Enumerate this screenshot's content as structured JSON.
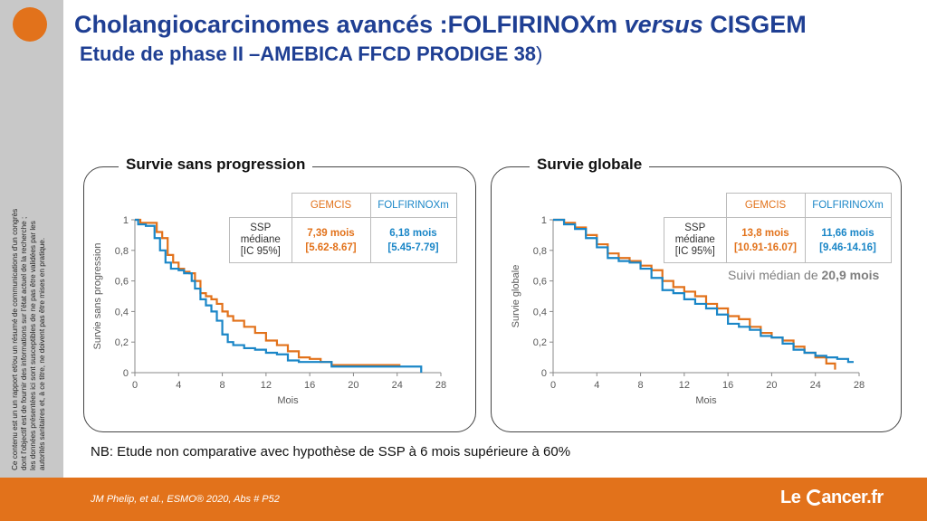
{
  "title_line1_a": "Cholangiocarcinomes avancés :FOLFIRINOXm ",
  "title_line1_b": "versus",
  "title_line1_c": " CISGEM",
  "title_line2": "Etude de phase II –AMEBICA  FFCD PRODIGE 38",
  "title_line2_paren": ")",
  "disclaimer": [
    "Ce contenu est un un rapport et/ou un résumé de communications d'un congrès",
    "dont l'objectif est de fournir des informations sur l'état actuel de la recherche ;",
    "les données présentées ici sont susceptibles de ne pas être validées par les",
    "autorités sanitaires et, à ce titre, ne doivent pas être mises en pratique."
  ],
  "colors": {
    "gemcis": "#e2721b",
    "folfirinox": "#1a86c7",
    "title": "#1f3f93",
    "footer": "#e2721b"
  },
  "table_headers": {
    "gemcis": "GEMCIS",
    "folfirinox": "FOLFIRINOXm"
  },
  "table_row_label": [
    "SSP",
    "médiane",
    "[IC 95%]"
  ],
  "pfs": {
    "panel_title": "Survie sans progression",
    "gemcis_value": [
      "7,39 mois",
      "[5.62-8.67]"
    ],
    "folfirinox_value": [
      "6,18 mois",
      "[5.45-7.79]"
    ]
  },
  "os": {
    "panel_title": "Survie globale",
    "gemcis_value": [
      "13,8 mois",
      "[10.91-16.07]"
    ],
    "folfirinox_value": [
      "11,66 mois",
      "[9.46-14.16]"
    ],
    "followup_text": "Suivi médian de ",
    "followup_bold": "20,9 mois"
  },
  "chart_data": [
    {
      "type": "line",
      "title": "Survie sans progression",
      "xlabel": "Mois",
      "ylabel": "Survie sans progression",
      "xlim": [
        0,
        28
      ],
      "ylim": [
        0,
        1
      ],
      "xticks": [
        "0",
        "4",
        "8",
        "12",
        "16",
        "20",
        "24",
        "28"
      ],
      "yticks": [
        "0",
        "0,2",
        "0,4",
        "0,6",
        "0,8",
        "1"
      ],
      "grid": false,
      "series": [
        {
          "name": "GEMCIS",
          "color": "#e2721b",
          "x": [
            0,
            0.5,
            1.2,
            2,
            2.5,
            3,
            3.5,
            4,
            4.5,
            5,
            5.5,
            6,
            6.5,
            7,
            7.5,
            8,
            8.5,
            9,
            10,
            11,
            12,
            13,
            14,
            15,
            16,
            17,
            18,
            20,
            22,
            24,
            24.3
          ],
          "y": [
            1,
            0.98,
            0.98,
            0.92,
            0.88,
            0.77,
            0.72,
            0.68,
            0.66,
            0.65,
            0.6,
            0.52,
            0.5,
            0.48,
            0.45,
            0.4,
            0.37,
            0.34,
            0.3,
            0.26,
            0.21,
            0.18,
            0.14,
            0.1,
            0.09,
            0.07,
            0.05,
            0.05,
            0.05,
            0.05,
            0.05
          ]
        },
        {
          "name": "FOLFIRINOXm",
          "color": "#1a86c7",
          "x": [
            0,
            0.3,
            1,
            1.8,
            2.3,
            2.8,
            3.3,
            4,
            4.5,
            5.2,
            5.5,
            6,
            6.5,
            7,
            7.5,
            8,
            8.5,
            9,
            10,
            11,
            12,
            13,
            14,
            15,
            16,
            18,
            20,
            24,
            26,
            26.2
          ],
          "y": [
            1,
            0.97,
            0.96,
            0.88,
            0.8,
            0.72,
            0.68,
            0.67,
            0.65,
            0.6,
            0.55,
            0.48,
            0.44,
            0.4,
            0.34,
            0.25,
            0.2,
            0.18,
            0.16,
            0.15,
            0.13,
            0.12,
            0.08,
            0.07,
            0.07,
            0.04,
            0.04,
            0.04,
            0.04,
            0
          ]
        }
      ]
    },
    {
      "type": "line",
      "title": "Survie globale",
      "xlabel": "Mois",
      "ylabel": "Survie globale",
      "xlim": [
        0,
        28
      ],
      "ylim": [
        0,
        1
      ],
      "xticks": [
        "0",
        "4",
        "8",
        "12",
        "16",
        "20",
        "24",
        "28"
      ],
      "yticks": [
        "0",
        "0,2",
        "0,4",
        "0,6",
        "0,8",
        "1"
      ],
      "grid": false,
      "series": [
        {
          "name": "GEMCIS",
          "color": "#e2721b",
          "x": [
            0,
            1,
            2,
            3,
            4,
            5,
            6,
            7,
            8,
            9,
            10,
            11,
            12,
            13,
            14,
            15,
            16,
            17,
            18,
            19,
            20,
            21,
            22,
            23,
            24,
            25,
            25.8
          ],
          "y": [
            1,
            0.98,
            0.95,
            0.9,
            0.84,
            0.78,
            0.75,
            0.73,
            0.7,
            0.67,
            0.6,
            0.56,
            0.53,
            0.5,
            0.45,
            0.42,
            0.37,
            0.35,
            0.3,
            0.26,
            0.23,
            0.21,
            0.17,
            0.13,
            0.1,
            0.06,
            0.02
          ]
        },
        {
          "name": "FOLFIRINOXm",
          "color": "#1a86c7",
          "x": [
            0,
            1,
            2,
            3,
            4,
            5,
            6,
            7,
            8,
            9,
            10,
            11,
            12,
            13,
            14,
            15,
            16,
            17,
            18,
            19,
            20,
            21,
            22,
            23,
            24,
            25,
            26,
            27,
            27.5
          ],
          "y": [
            1,
            0.97,
            0.94,
            0.88,
            0.82,
            0.75,
            0.73,
            0.72,
            0.68,
            0.62,
            0.54,
            0.52,
            0.48,
            0.45,
            0.42,
            0.38,
            0.32,
            0.3,
            0.28,
            0.24,
            0.23,
            0.19,
            0.15,
            0.13,
            0.11,
            0.1,
            0.09,
            0.07,
            0.07
          ]
        }
      ]
    }
  ],
  "nb_text": "NB: Etude non comparative avec hypothèse de SSP à 6 mois supérieure à 60%",
  "citation": "JM Phelip, et al., ESMO® 2020, Abs # P52",
  "brand": {
    "part1": "Le ",
    "part2": "ancer.fr"
  }
}
